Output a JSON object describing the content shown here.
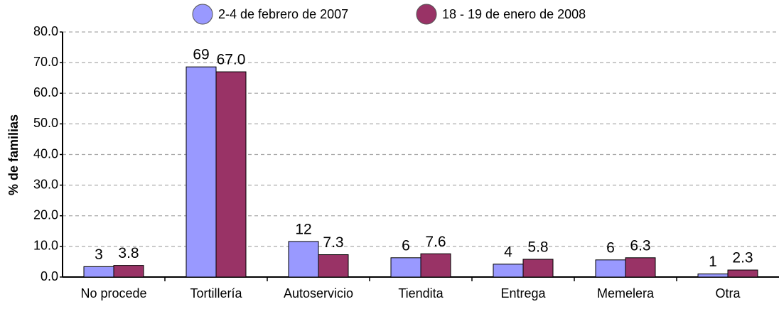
{
  "chart_data": {
    "type": "bar",
    "y_label": "% de familias",
    "categories": [
      "No procede",
      "Tortillería",
      "Autoservicio",
      "Tiendita",
      "Entrega",
      "Memelera",
      "Otra"
    ],
    "series": [
      {
        "name": "2-4 de febrero de 2007",
        "color": "#9999ff",
        "values": [
          3.4,
          68.6,
          11.6,
          6.3,
          4.2,
          5.6,
          1.0
        ],
        "value_labels": [
          "3",
          "69",
          "12",
          "6",
          "4",
          "6",
          "1"
        ]
      },
      {
        "name": "18 - 19 de enero de 2008",
        "color": "#993366",
        "values": [
          3.8,
          67.0,
          7.3,
          7.6,
          5.8,
          6.3,
          2.3
        ],
        "value_labels": [
          "3.8",
          "67.0",
          "7.3",
          "7.6",
          "5.8",
          "6.3",
          "2.3"
        ]
      }
    ],
    "ylim": [
      0,
      80
    ],
    "yticks": [
      {
        "value": 0,
        "label": "0.0"
      },
      {
        "value": 10,
        "label": "10.0"
      },
      {
        "value": 20,
        "label": "20.0"
      },
      {
        "value": 30,
        "label": "30.0"
      },
      {
        "value": 40,
        "label": "40.0"
      },
      {
        "value": 50,
        "label": "50.0"
      },
      {
        "value": 60,
        "label": "60.0"
      },
      {
        "value": 70,
        "label": "70.0"
      },
      {
        "value": 80,
        "label": "80.0"
      }
    ],
    "grid": true,
    "legend": "top"
  }
}
